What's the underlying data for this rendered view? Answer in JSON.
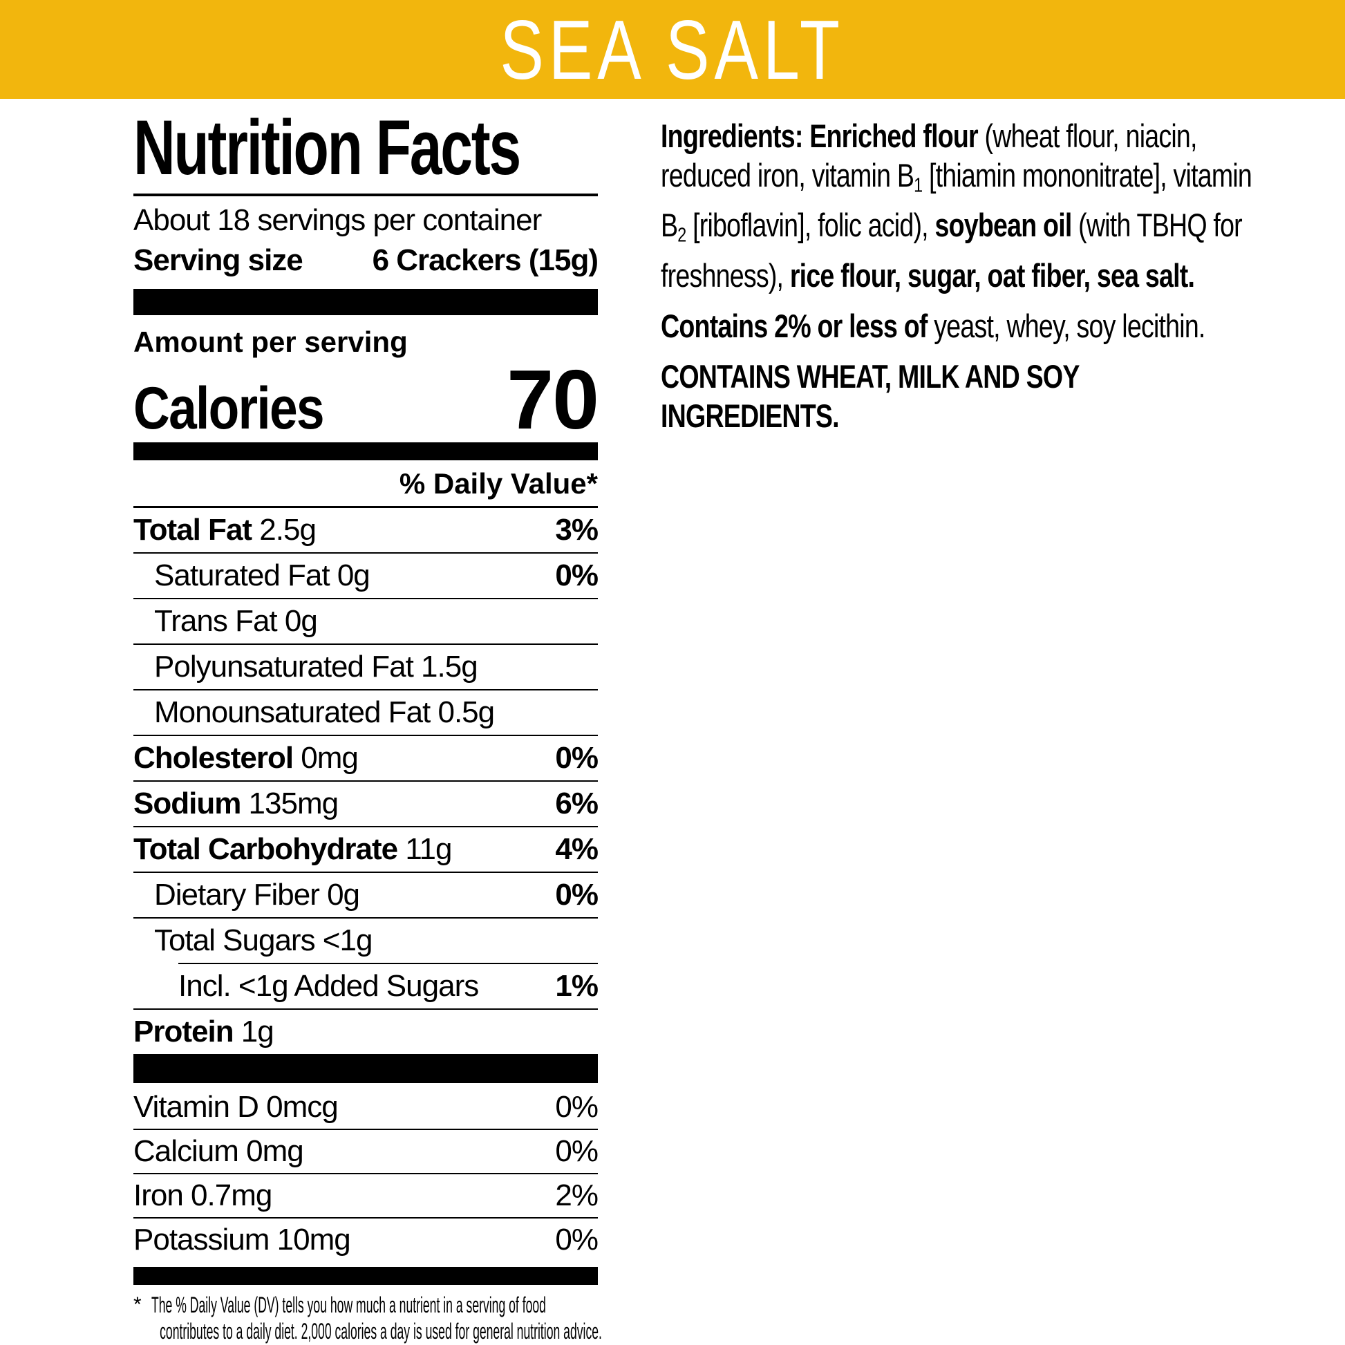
{
  "banner": {
    "title": "SEA SALT"
  },
  "colors": {
    "banner_bg": "#F2B60D",
    "banner_text": "#FFFFFF",
    "text": "#000000",
    "background": "#FFFFFF"
  },
  "panel": {
    "title": "Nutrition Facts",
    "servings": "About 18 servings per container",
    "serving_size_label": "Serving size",
    "serving_size_value": "6 Crackers (15g)",
    "amount_per_serving": "Amount per serving",
    "calories_label": "Calories",
    "calories_value": "70",
    "dv_header": "% Daily Value*",
    "rows": [
      {
        "label": "Total Fat",
        "amount": "2.5g",
        "dv": "3%",
        "labelBold": true,
        "dvBold": true,
        "indent": 0
      },
      {
        "label": "Saturated Fat",
        "amount": "0g",
        "dv": "0%",
        "labelBold": false,
        "dvBold": true,
        "indent": 1
      },
      {
        "label": "Trans Fat",
        "amount": "0g",
        "dv": "",
        "labelBold": false,
        "dvBold": false,
        "indent": 1
      },
      {
        "label": "Polyunsaturated Fat",
        "amount": "1.5g",
        "dv": "",
        "labelBold": false,
        "dvBold": false,
        "indent": 1
      },
      {
        "label": "Monounsaturated Fat",
        "amount": "0.5g",
        "dv": "",
        "labelBold": false,
        "dvBold": false,
        "indent": 1
      },
      {
        "label": "Cholesterol",
        "amount": "0mg",
        "dv": "0%",
        "labelBold": true,
        "dvBold": true,
        "indent": 0
      },
      {
        "label": "Sodium",
        "amount": "135mg",
        "dv": "6%",
        "labelBold": true,
        "dvBold": true,
        "indent": 0
      },
      {
        "label": "Total Carbohydrate",
        "amount": "11g",
        "dv": "4%",
        "labelBold": true,
        "dvBold": true,
        "indent": 0
      },
      {
        "label": "Dietary Fiber",
        "amount": "0g",
        "dv": "0%",
        "labelBold": false,
        "dvBold": true,
        "indent": 1
      },
      {
        "label": "Total Sugars",
        "amount": "<1g",
        "dv": "",
        "labelBold": false,
        "dvBold": false,
        "indent": 1
      },
      {
        "label": "Incl. <1g Added Sugars",
        "amount": "",
        "dv": "1%",
        "labelBold": false,
        "dvBold": true,
        "indent": 2,
        "ruleIndent": 65
      },
      {
        "label": "Protein",
        "amount": "1g",
        "dv": "",
        "labelBold": true,
        "dvBold": false,
        "indent": 0
      }
    ],
    "vitamins": [
      {
        "label": "Vitamin D 0mcg",
        "dv": "0%"
      },
      {
        "label": "Calcium 0mg",
        "dv": "0%"
      },
      {
        "label": "Iron 0.7mg",
        "dv": "2%"
      },
      {
        "label": "Potassium 10mg",
        "dv": "0%"
      }
    ],
    "footnote_marker": "*",
    "footnote_line1": "The % Daily Value (DV) tells you how much a nutrient in a serving of food",
    "footnote_line2": "contributes to a daily diet. 2,000 calories a day is used for general nutrition advice."
  },
  "ingredients": {
    "paragraphs": [
      [
        {
          "t": "Ingredients: Enriched flour",
          "b": true
        },
        {
          "t": " (wheat flour, niacin, reduced iron, vitamin B"
        },
        {
          "t": "1",
          "sub": true
        },
        {
          "t": " [thiamin mononitrate], vitamin B"
        },
        {
          "t": "2",
          "sub": true
        },
        {
          "t": " [riboflavin], folic acid), "
        },
        {
          "t": "soybean oil",
          "b": true
        },
        {
          "t": " (with TBHQ for freshness), "
        },
        {
          "t": "rice flour, sugar, oat fiber, sea salt.",
          "b": true
        }
      ],
      [
        {
          "t": "Contains 2% or less of",
          "b": true
        },
        {
          "t": " yeast, whey, soy lecithin."
        }
      ],
      [
        {
          "t": "CONTAINS WHEAT, MILK AND SOY INGREDIENTS.",
          "b": true
        }
      ]
    ]
  }
}
